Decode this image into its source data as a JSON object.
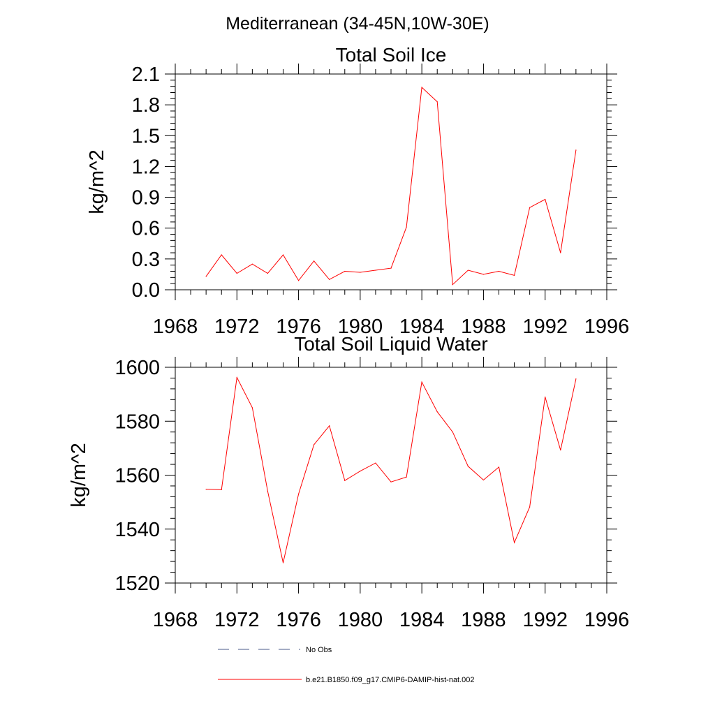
{
  "figure": {
    "title": "Mediterranean (34-45N,10W-30E)"
  },
  "chart_data": [
    {
      "type": "line",
      "title": "Total Soil Ice",
      "xlabel": "",
      "ylabel": "kg/m^2",
      "xlim": [
        1968,
        1996
      ],
      "ylim": [
        0.0,
        2.1
      ],
      "xticks": [
        "1968",
        "1972",
        "1976",
        "1980",
        "1984",
        "1988",
        "1992",
        "1996"
      ],
      "yticks": [
        "0.0",
        "0.3",
        "0.6",
        "0.9",
        "1.2",
        "1.5",
        "1.8",
        "2.1"
      ],
      "x": [
        1970,
        1971,
        1972,
        1973,
        1974,
        1975,
        1976,
        1977,
        1978,
        1979,
        1980,
        1981,
        1982,
        1983,
        1984,
        1985,
        1986,
        1987,
        1988,
        1989,
        1990,
        1991,
        1992,
        1993,
        1994
      ],
      "series": [
        {
          "name": "b.e21.B1850.f09_g17.CMIP6-DAMIP-hist-nat.002",
          "color": "#ff0000",
          "values": [
            0.13,
            0.34,
            0.16,
            0.25,
            0.16,
            0.34,
            0.09,
            0.28,
            0.1,
            0.18,
            0.17,
            0.19,
            0.21,
            0.61,
            1.97,
            1.83,
            0.05,
            0.19,
            0.15,
            0.18,
            0.14,
            0.8,
            0.88,
            0.36,
            1.36
          ]
        }
      ]
    },
    {
      "type": "line",
      "title": "Total Soil Liquid Water",
      "xlabel": "",
      "ylabel": "kg/m^2",
      "xlim": [
        1968,
        1996
      ],
      "ylim": [
        1520,
        1600
      ],
      "xticks": [
        "1968",
        "1972",
        "1976",
        "1980",
        "1984",
        "1988",
        "1992",
        "1996"
      ],
      "yticks": [
        "1520",
        "1540",
        "1560",
        "1580",
        "1600"
      ],
      "x": [
        1970,
        1971,
        1972,
        1973,
        1974,
        1975,
        1976,
        1977,
        1978,
        1979,
        1980,
        1981,
        1982,
        1983,
        1984,
        1985,
        1986,
        1987,
        1988,
        1989,
        1990,
        1991,
        1992,
        1993,
        1994
      ],
      "series": [
        {
          "name": "b.e21.B1850.f09_g17.CMIP6-DAMIP-hist-nat.002",
          "color": "#ff0000",
          "values": [
            1554.8,
            1554.6,
            1596.2,
            1585.0,
            1554.0,
            1527.5,
            1553.0,
            1571.3,
            1578.3,
            1558.0,
            1561.5,
            1564.5,
            1557.5,
            1559.3,
            1594.5,
            1583.5,
            1576.0,
            1563.3,
            1558.2,
            1563.0,
            1535.0,
            1548.2,
            1589.0,
            1569.3,
            1595.7
          ]
        }
      ]
    }
  ],
  "legend": {
    "items": [
      {
        "label": "No Obs",
        "style": "dashed",
        "color": "#4a5a8a"
      },
      {
        "label": "b.e21.B1850.f09_g17.CMIP6-DAMIP-hist-nat.002",
        "style": "solid",
        "color": "#ff0000"
      }
    ]
  }
}
